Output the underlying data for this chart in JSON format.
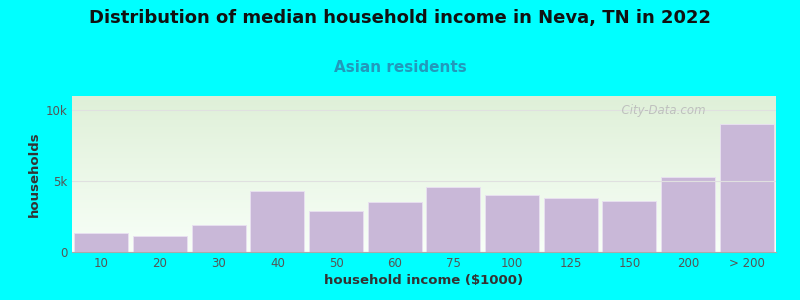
{
  "title": "Distribution of median household income in Neva, TN in 2022",
  "subtitle": "Asian residents",
  "xlabel": "household income ($1000)",
  "ylabel": "households",
  "background_color": "#00FFFF",
  "plot_bg_top": "#dff0d8",
  "plot_bg_bottom": "#f8fff8",
  "bar_color": "#c9b8d8",
  "bar_edgecolor": "#e8e0f0",
  "categories": [
    "10",
    "20",
    "30",
    "40",
    "50",
    "60",
    "75",
    "100",
    "125",
    "150",
    "200",
    "> 200"
  ],
  "values": [
    1350,
    1100,
    1900,
    4300,
    2900,
    3500,
    4600,
    4000,
    3800,
    3600,
    5300,
    9000
  ],
  "yticks": [
    0,
    5000,
    10000
  ],
  "ytick_labels": [
    "0",
    "5k",
    "10k"
  ],
  "ylim": [
    0,
    11000
  ],
  "title_fontsize": 13,
  "subtitle_fontsize": 11,
  "axis_label_fontsize": 9.5,
  "tick_fontsize": 8.5,
  "watermark_text": "  City-Data.com",
  "title_color": "#111111",
  "subtitle_color": "#2299bb",
  "axis_label_color": "#333333",
  "tick_color": "#555555",
  "grid_color": "#e0e0e0"
}
